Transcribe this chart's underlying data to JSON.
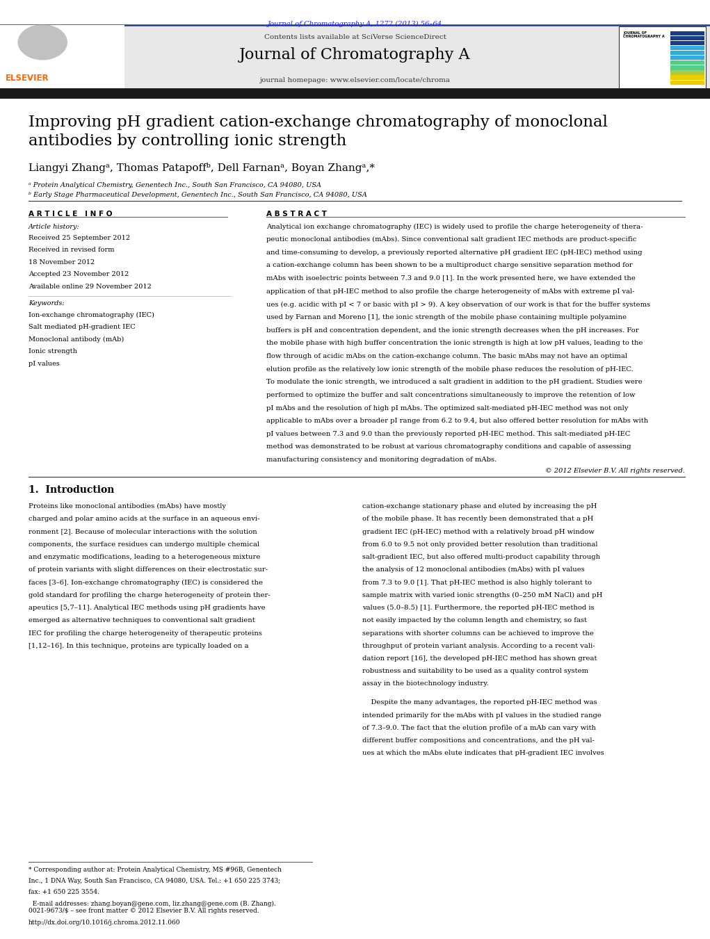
{
  "page_bg": "#ffffff",
  "journal_ref_text": "Journal of Chromatography A, 1272 (2013) 56–64",
  "journal_ref_color": "#1a1aff",
  "header_bg": "#e8e8e8",
  "header_contents_text": "Contents lists available at SciVerse ScienceDirect",
  "journal_title_text": "Journal of Chromatography A",
  "journal_homepage_text": "journal homepage: www.elsevier.com/locate/chroma",
  "dark_bar_color": "#1a1a1a",
  "article_title": "Improving pH gradient cation-exchange chromatography of monoclonal\nantibodies by controlling ionic strength",
  "authors": "Liangyi Zhangᵃ, Thomas Patapoffᵇ, Dell Farnanᵃ, Boyan Zhangᵃ,*",
  "affil_a": "ᵃ Protein Analytical Chemistry, Genentech Inc., South San Francisco, CA 94080, USA",
  "affil_b": "ᵇ Early Stage Pharmaceutical Development, Genentech Inc., South San Francisco, CA 94080, USA",
  "article_info_label": "A R T I C L E   I N F O",
  "abstract_label": "A B S T R A C T",
  "article_history_label": "Article history:",
  "received_text": "Received 25 September 2012",
  "received_revised_text": "Received in revised form",
  "received_revised_date": "18 November 2012",
  "accepted_text": "Accepted 23 November 2012",
  "available_text": "Available online 29 November 2012",
  "keywords_label": "Keywords:",
  "keywords": [
    "Ion-exchange chromatography (IEC)",
    "Salt mediated pH-gradient IEC",
    "Monoclonal antibody (mAb)",
    "Ionic strength",
    "pI values"
  ],
  "abstract_text": "Analytical ion exchange chromatography (IEC) is widely used to profile the charge heterogeneity of therapeutic monoclonal antibodies (mAbs). Since conventional salt gradient IEC methods are product-specific and time-consuming to develop, a previously reported alternative pH gradient IEC (pH-IEC) method using a cation-exchange column has been shown to be a multiproduct charge sensitive separation method for mAbs with isoelectric points between 7.3 and 9.0 [1]. In the work presented here, we have extended the application of that pH-IEC method to also profile the charge heterogeneity of mAbs with extreme pI values (e.g. acidic with pI < 7 or basic with pI > 9). A key observation of our work is that for the buffer systems used by Farnan and Moreno [1], the ionic strength of the mobile phase containing multiple polyamine buffers is pH and concentration dependent, and the ionic strength decreases when the pH increases. For the mobile phase with high buffer concentration the ionic strength is high at low pH values, leading to the flow through of acidic mAbs on the cation-exchange column. The basic mAbs may not have an optimal elution profile as the relatively low ionic strength of the mobile phase reduces the resolution of pH-IEC. To modulate the ionic strength, we introduced a salt gradient in addition to the pH gradient. Studies were performed to optimize the buffer and salt concentrations simultaneously to improve the retention of low pI mAbs and the resolution of high pI mAbs. The optimized salt-mediated pH-IEC method was not only applicable to mAbs over a broader pI range from 6.2 to 9.4, but also offered better resolution for mAbs with pI values between 7.3 and 9.0 than the previously reported pH-IEC method. This salt-mediated pH-IEC method was demonstrated to be robust at various chromatography conditions and capable of assessing manufacturing consistency and monitoring degradation of mAbs.",
  "copyright_text": "© 2012 Elsevier B.V. All rights reserved.",
  "intro_section": "1.  Introduction",
  "intro_col1_text": "Proteins like monoclonal antibodies (mAbs) have mostly\ncharged and polar amino acids at the surface in an aqueous envi-\nronment [2]. Because of molecular interactions with the solution\ncomponents, the surface residues can undergo multiple chemical\nand enzymatic modifications, leading to a heterogeneous mixture\nof protein variants with slight differences on their electrostatic sur-\nfaces [3–6]. Ion-exchange chromatography (IEC) is considered the\ngold standard for profiling the charge heterogeneity of protein ther-\napeutics [5,7–11]. Analytical IEC methods using pH gradients have\nemerged as alternative techniques to conventional salt gradient\nIEC for profiling the charge heterogeneity of therapeutic proteins\n[1,12–16]. In this technique, proteins are typically loaded on a",
  "intro_col2_text": "cation-exchange stationary phase and eluted by increasing the pH\nof the mobile phase. It has recently been demonstrated that a pH\ngradient IEC (pH-IEC) method with a relatively broad pH window\nfrom 6.0 to 9.5 not only provided better resolution than traditional\nsalt-gradient IEC, but also offered multi-product capability through\nthe analysis of 12 monoclonal antibodies (mAbs) with pI values\nfrom 7.3 to 9.0 [1]. That pH-IEC method is also highly tolerant to\nsample matrix with varied ionic strengths (0–250 mM NaCl) and pH\nvalues (5.0–8.5) [1]. Furthermore, the reported pH-IEC method is\nnot easily impacted by the column length and chemistry, so fast\nseparations with shorter columns can be achieved to improve the\nthroughput of protein variant analysis. According to a recent vali-\ndation report [16], the developed pH-IEC method has shown great\nrobustness and suitability to be used as a quality control system\nassay in the biotechnology industry.",
  "despite_text": "    Despite the many advantages, the reported pH-IEC method was\nintended primarily for the mAbs with pI values in the studied range\nof 7.3–9.0. The fact that the elution profile of a mAb can vary with\ndifferent buffer compositions and concentrations, and the pH val-\nues at which the mAbs elute indicates that pH-gradient IEC involves",
  "footnote_text": "* Corresponding author at: Protein Analytical Chemistry, MS #96B, Genentech\nInc., 1 DNA Way, South San Francisco, CA 94080, USA. Tel.: +1 650 225 3743;\nfax: +1 650 225 3554.\n  E-mail addresses: zhang.boyan@gene.com, liz.zhang@gene.com (B. Zhang).",
  "issn_text": "0021-9673/$ – see front matter © 2012 Elsevier B.V. All rights reserved.\nhttp://dx.doi.org/10.1016/j.chroma.2012.11.060",
  "stripe_colors": [
    "#1a3a8a",
    "#1a3a8a",
    "#1a3a8a",
    "#33aadd",
    "#33aadd",
    "#33aadd",
    "#55cc88",
    "#55cc88",
    "#aacc44",
    "#eecc00",
    "#eecc00"
  ]
}
